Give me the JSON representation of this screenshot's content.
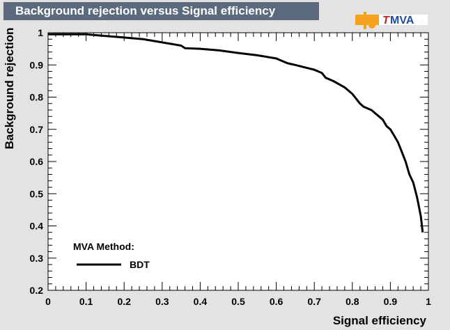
{
  "header": {
    "title": "Background rejection versus Signal efficiency",
    "logo_text_t": "T",
    "logo_text_rest": "MVA"
  },
  "colors": {
    "background": "#e3e3e3",
    "plot_background": "#ffffff",
    "title_box": "#5b6a7c",
    "logo_orange": "#f4a11c",
    "logo_red": "#cc1f1f",
    "logo_blue": "#1f4c9e",
    "curve": "#000000"
  },
  "chart_data": {
    "type": "line",
    "xlabel": "Signal efficiency",
    "ylabel": "Background rejection",
    "xlim": [
      0,
      1
    ],
    "ylim": [
      0.2,
      1
    ],
    "xticks": [
      "0",
      "0.1",
      "0.2",
      "0.3",
      "0.4",
      "0.5",
      "0.6",
      "0.7",
      "0.8",
      "0.9",
      "1"
    ],
    "yticks": [
      "0.2",
      "0.3",
      "0.4",
      "0.5",
      "0.6",
      "0.7",
      "0.8",
      "0.9",
      "1"
    ],
    "grid": false,
    "legend": {
      "title": "MVA Method:",
      "placement": "bottom-left",
      "entries": [
        "BDT"
      ]
    },
    "series": [
      {
        "name": "BDT",
        "x": [
          0.0,
          0.05,
          0.1,
          0.15,
          0.2,
          0.25,
          0.3,
          0.35,
          0.36,
          0.4,
          0.45,
          0.5,
          0.55,
          0.6,
          0.62,
          0.63,
          0.65,
          0.7,
          0.72,
          0.73,
          0.75,
          0.78,
          0.8,
          0.82,
          0.83,
          0.85,
          0.87,
          0.88,
          0.89,
          0.9,
          0.91,
          0.92,
          0.93,
          0.94,
          0.95,
          0.96,
          0.97,
          0.975,
          0.98,
          0.985
        ],
        "y": [
          0.995,
          0.995,
          0.995,
          0.99,
          0.985,
          0.98,
          0.97,
          0.96,
          0.952,
          0.95,
          0.945,
          0.937,
          0.93,
          0.92,
          0.91,
          0.905,
          0.9,
          0.885,
          0.875,
          0.86,
          0.85,
          0.83,
          0.81,
          0.78,
          0.77,
          0.76,
          0.74,
          0.73,
          0.71,
          0.7,
          0.68,
          0.66,
          0.63,
          0.6,
          0.56,
          0.535,
          0.49,
          0.46,
          0.43,
          0.38
        ]
      }
    ]
  }
}
